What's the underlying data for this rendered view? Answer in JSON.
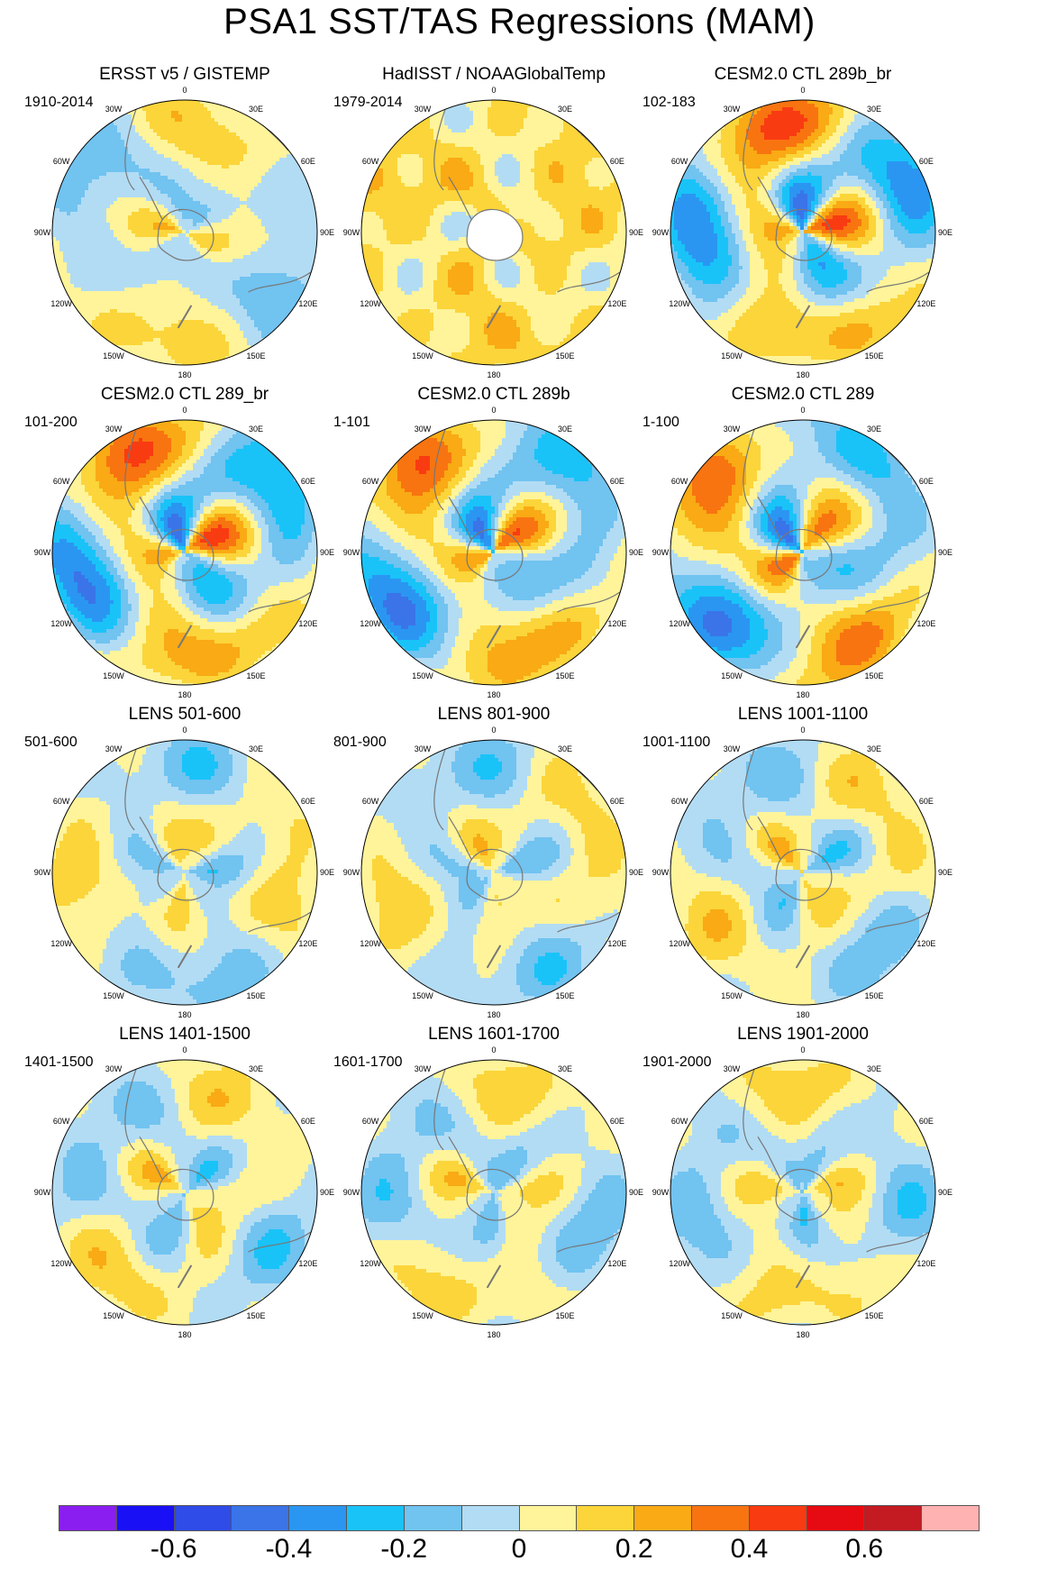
{
  "title": "PSA1 SST/TAS Regressions (MAM)",
  "lon_labels": [
    "0",
    "30E",
    "60E",
    "90E",
    "120E",
    "150E",
    "180",
    "150W",
    "120W",
    "90W",
    "60W",
    "30W"
  ],
  "panels": [
    {
      "title": "ERSST v5 / GISTEMP",
      "period": "1910-2014",
      "pattern": "obs1"
    },
    {
      "title": "HadISST / NOAAGlobalTemp",
      "period": "1979-2014",
      "pattern": "obs2"
    },
    {
      "title": "CESM2.0 CTL 289b_br",
      "period": "102-183",
      "pattern": "strong"
    },
    {
      "title": "CESM2.0 CTL 289_br",
      "period": "101-200",
      "pattern": "strong"
    },
    {
      "title": "CESM2.0 CTL 289b",
      "period": "1-101",
      "pattern": "strong"
    },
    {
      "title": "CESM2.0 CTL 289",
      "period": "1-100",
      "pattern": "strong"
    },
    {
      "title": "LENS 501-600",
      "period": "501-600",
      "pattern": "weak"
    },
    {
      "title": "LENS 801-900",
      "period": "801-900",
      "pattern": "weak"
    },
    {
      "title": "LENS 1001-1100",
      "period": "1001-1100",
      "pattern": "weak"
    },
    {
      "title": "LENS 1401-1500",
      "period": "1401-1500",
      "pattern": "weak"
    },
    {
      "title": "LENS 1601-1700",
      "period": "1601-1700",
      "pattern": "weak"
    },
    {
      "title": "LENS 1901-2000",
      "period": "1901-2000",
      "pattern": "weak"
    }
  ],
  "colorbar": {
    "colors": [
      "#8a1ef0",
      "#1a10f5",
      "#2f4be8",
      "#3a74e8",
      "#2a96f2",
      "#19c3f8",
      "#71c3f0",
      "#b2dcf4",
      "#fff49a",
      "#fbd53a",
      "#f9aa14",
      "#f87410",
      "#f93b12",
      "#e60a12",
      "#c41a22",
      "#ffb2b2"
    ],
    "tick_labels": [
      "-0.6",
      "-0.4",
      "-0.2",
      "0",
      "0.2",
      "0.4",
      "0.6"
    ],
    "tick_values": [
      -0.6,
      -0.4,
      -0.2,
      0,
      0.2,
      0.4,
      0.6
    ],
    "bounds": [
      -0.8,
      0.8
    ]
  }
}
